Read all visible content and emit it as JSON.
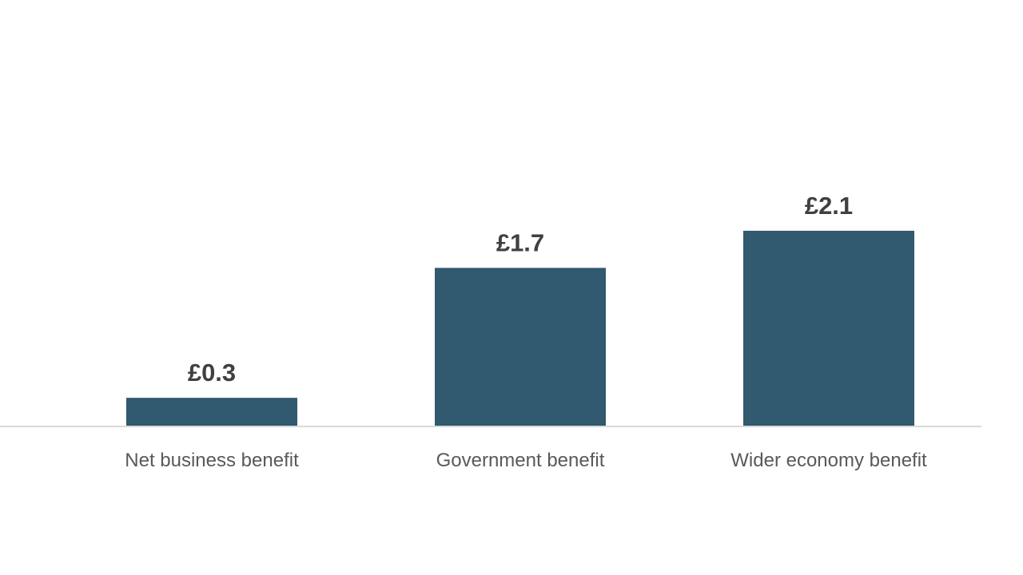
{
  "chart_data": {
    "type": "bar",
    "categories": [
      "Net business benefit",
      "Government benefit",
      "Wider economy benefit"
    ],
    "values": [
      0.3,
      1.7,
      2.1
    ],
    "data_labels": [
      "£0.3",
      "£1.7",
      "£2.1"
    ],
    "title": "",
    "xlabel": "",
    "ylabel": "",
    "ylim": [
      0,
      3.7
    ],
    "grid": false,
    "legend": "none",
    "colors": {
      "bar": "#31596f",
      "axis": "#d9d9d9",
      "data_label": "#404040",
      "category_label": "#595959"
    }
  }
}
